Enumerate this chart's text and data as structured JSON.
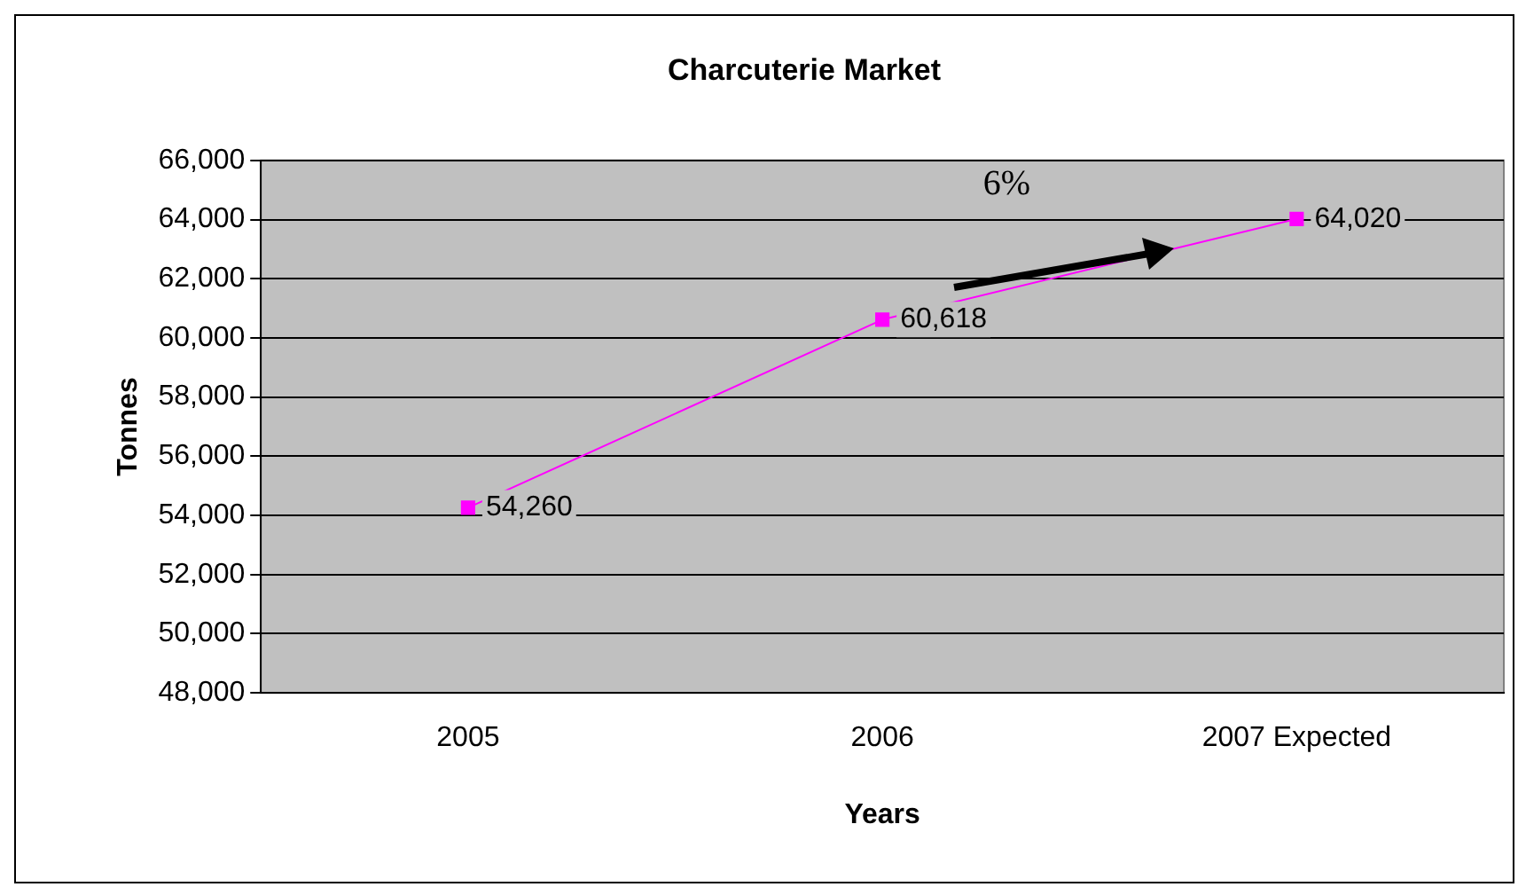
{
  "chart_data": {
    "type": "line",
    "title": "Charcuterie Market",
    "xlabel": "Years",
    "ylabel": "Tonnes",
    "categories": [
      "2005",
      "2006",
      "2007 Expected"
    ],
    "series": [
      {
        "color": "#ff00ff",
        "values": [
          54260,
          60618,
          64020
        ],
        "value_labels": [
          "54,260",
          "60,618",
          "64,020"
        ]
      }
    ],
    "ylim": [
      48000,
      66000
    ],
    "yticks": [
      {
        "value": 48000,
        "label": "48,000"
      },
      {
        "value": 50000,
        "label": "50,000"
      },
      {
        "value": 52000,
        "label": "52,000"
      },
      {
        "value": 54000,
        "label": "54,000"
      },
      {
        "value": 56000,
        "label": "56,000"
      },
      {
        "value": 58000,
        "label": "58,000"
      },
      {
        "value": 60000,
        "label": "60,000"
      },
      {
        "value": 62000,
        "label": "62,000"
      },
      {
        "value": 64000,
        "label": "64,000"
      },
      {
        "value": 66000,
        "label": "66,000"
      }
    ],
    "grid": "y",
    "legend": false,
    "marker": "square",
    "line_style": "solid",
    "annotations": [
      "6%"
    ]
  }
}
